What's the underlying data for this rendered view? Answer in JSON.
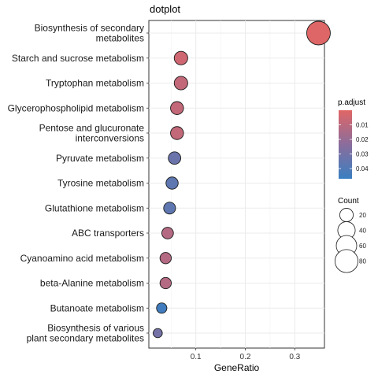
{
  "chart_data": {
    "type": "scatter",
    "title": "dotplot",
    "xlabel": "GeneRatio",
    "ylabel": "",
    "xlim": [
      0.005,
      0.36
    ],
    "x_ticks": [
      {
        "value": 0.1,
        "label": "0.1"
      },
      {
        "value": 0.2,
        "label": "0.2"
      },
      {
        "value": 0.3,
        "label": "0.3"
      }
    ],
    "grid": true,
    "color_scale": {
      "low_color": "#e06666",
      "mid_color": "#8a6d9c",
      "high_color": "#3a7fc1",
      "range": [
        0,
        0.047
      ]
    },
    "points": [
      {
        "label": "Biosynthesis of secondary\nmetabolites",
        "x": 0.348,
        "p_adjust": 0.0005,
        "count": 85
      },
      {
        "label": "Starch and sucrose metabolism",
        "x": 0.07,
        "p_adjust": 0.005,
        "count": 20
      },
      {
        "label": "Tryptophan metabolism",
        "x": 0.07,
        "p_adjust": 0.008,
        "count": 20
      },
      {
        "label": "Glycerophospholipid metabolism",
        "x": 0.062,
        "p_adjust": 0.008,
        "count": 18
      },
      {
        "label": "Pentose and glucuronate\ninterconversions",
        "x": 0.062,
        "p_adjust": 0.008,
        "count": 18
      },
      {
        "label": "Pyruvate metabolism",
        "x": 0.057,
        "p_adjust": 0.033,
        "count": 16
      },
      {
        "label": "Tyrosine metabolism",
        "x": 0.052,
        "p_adjust": 0.036,
        "count": 15
      },
      {
        "label": "Glutathione metabolism",
        "x": 0.047,
        "p_adjust": 0.036,
        "count": 14
      },
      {
        "label": "ABC transporters",
        "x": 0.043,
        "p_adjust": 0.012,
        "count": 13
      },
      {
        "label": "Cyanoamino acid metabolism",
        "x": 0.039,
        "p_adjust": 0.012,
        "count": 12
      },
      {
        "label": "beta-Alanine metabolism",
        "x": 0.039,
        "p_adjust": 0.012,
        "count": 12
      },
      {
        "label": "Butanoate metabolism",
        "x": 0.031,
        "p_adjust": 0.045,
        "count": 9
      },
      {
        "label": "Biosynthesis of various\nplant secondary metabolites",
        "x": 0.023,
        "p_adjust": 0.03,
        "count": 6
      }
    ],
    "legend_color": {
      "title": "p.adjust",
      "position": "right",
      "ticks": [
        {
          "value": 0.01,
          "label": "0.01"
        },
        {
          "value": 0.02,
          "label": "0.02"
        },
        {
          "value": 0.03,
          "label": "0.03"
        },
        {
          "value": 0.04,
          "label": "0.04"
        }
      ]
    },
    "legend_size": {
      "title": "Count",
      "position": "right",
      "entries": [
        {
          "count": 20,
          "label": "20"
        },
        {
          "count": 40,
          "label": "40"
        },
        {
          "count": 60,
          "label": "60"
        },
        {
          "count": 80,
          "label": "80"
        }
      ]
    }
  }
}
